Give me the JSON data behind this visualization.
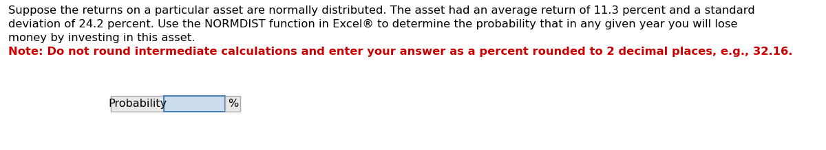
{
  "line1": "Suppose the returns on a particular asset are normally distributed. The asset had an average return of 11.3 percent and a standard",
  "line2_part1": "deviation of 24.2 percent. Use the NORMDIST function in ",
  "line2_excel": "Excel",
  "line2_reg": "®",
  "line2_part2": " to determine the probability that in any given year you will lose",
  "line3": "money by investing in this asset.",
  "note_line": "Note: Do not round intermediate calculations and enter your answer as a percent rounded to 2 decimal places, e.g., 32.16.",
  "label_text": "Probability",
  "percent_text": "%",
  "text_color": "#000000",
  "note_color": "#cc0000",
  "bg_color": "#ffffff",
  "box_fill": "#ccddf0",
  "box_border": "#4a7fb5",
  "label_box_fill": "#e8e8e8",
  "label_box_border": "#aaaaaa",
  "pct_box_fill": "#e8e8e8",
  "font_size_main": 11.8,
  "font_size_note": 11.8,
  "font_size_label": 11.5,
  "font_size_superscript": 7.0
}
